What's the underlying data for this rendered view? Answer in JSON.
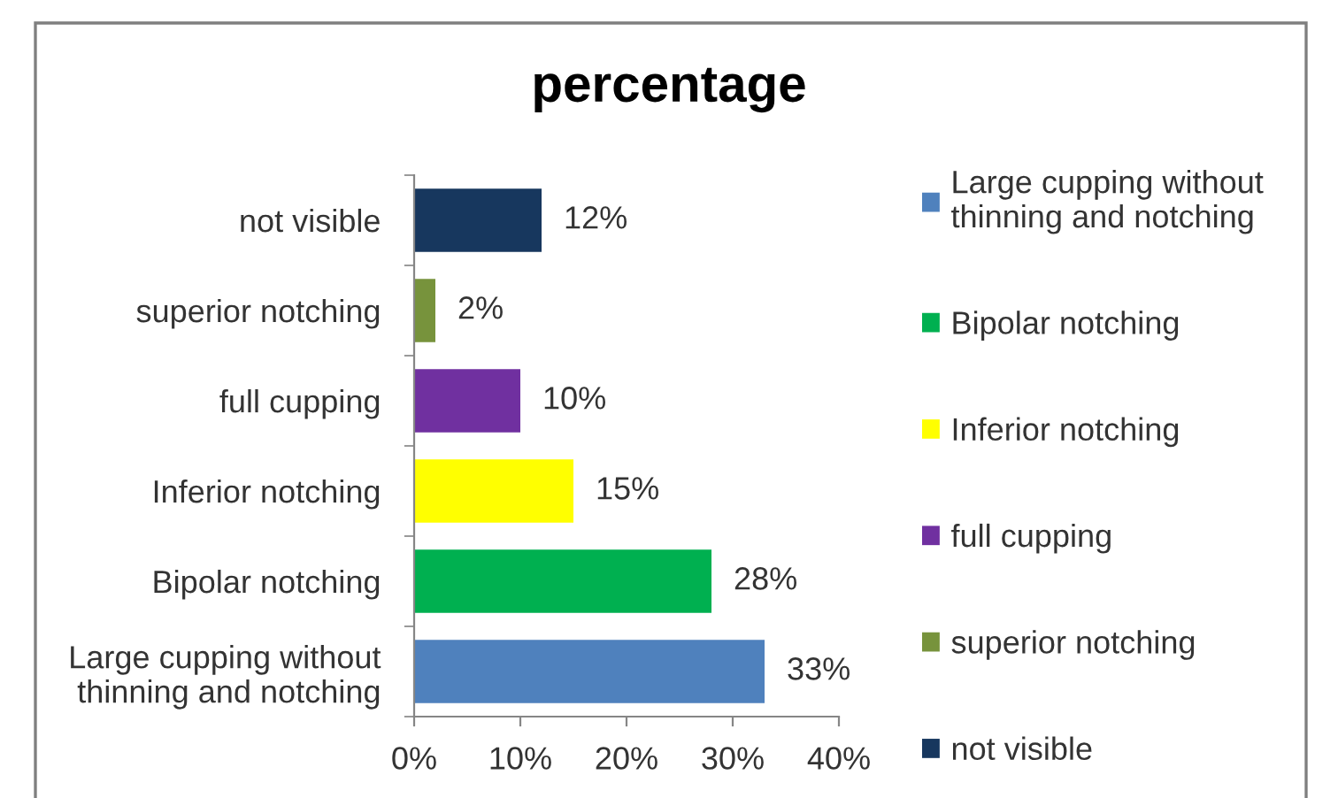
{
  "chart_data": {
    "type": "bar",
    "orientation": "horizontal",
    "stacked": true,
    "title": "percentage",
    "categories": [
      "not visible",
      "superior notching",
      "full cupping",
      "Inferior notching",
      "Bipolar notching",
      "Large cupping without thinning and notching"
    ],
    "series": [
      {
        "name": "Large cupping without thinning and notching",
        "color": "#4f81bd",
        "values": [
          null,
          null,
          null,
          null,
          null,
          33
        ],
        "value_labels": [
          null,
          null,
          null,
          null,
          null,
          "33%"
        ]
      },
      {
        "name": "Bipolar notching",
        "color": "#00b050",
        "values": [
          null,
          null,
          null,
          null,
          28,
          null
        ],
        "value_labels": [
          null,
          null,
          null,
          null,
          "28%",
          null
        ]
      },
      {
        "name": "Inferior notching",
        "color": "#ffff00",
        "values": [
          null,
          null,
          null,
          15,
          null,
          null
        ],
        "value_labels": [
          null,
          null,
          null,
          "15%",
          null,
          null
        ]
      },
      {
        "name": "full cupping",
        "color": "#7030a0",
        "values": [
          null,
          null,
          10,
          null,
          null,
          null
        ],
        "value_labels": [
          null,
          null,
          "10%",
          null,
          null,
          null
        ]
      },
      {
        "name": "superior notching",
        "color": "#77933c",
        "values": [
          null,
          2,
          null,
          null,
          null,
          null
        ],
        "value_labels": [
          null,
          "2%",
          null,
          null,
          null,
          null
        ]
      },
      {
        "name": "not visible",
        "color": "#17375e",
        "values": [
          12,
          null,
          null,
          null,
          null,
          null
        ],
        "value_labels": [
          "12%",
          null,
          null,
          null,
          null,
          null
        ]
      }
    ],
    "xlim": [
      0,
      40
    ],
    "xticks": [
      {
        "value": 0,
        "label": "0%"
      },
      {
        "value": 10,
        "label": "10%"
      },
      {
        "value": 20,
        "label": "20%"
      },
      {
        "value": 30,
        "label": "30%"
      },
      {
        "value": 40,
        "label": "40%"
      }
    ],
    "legend": "right"
  }
}
